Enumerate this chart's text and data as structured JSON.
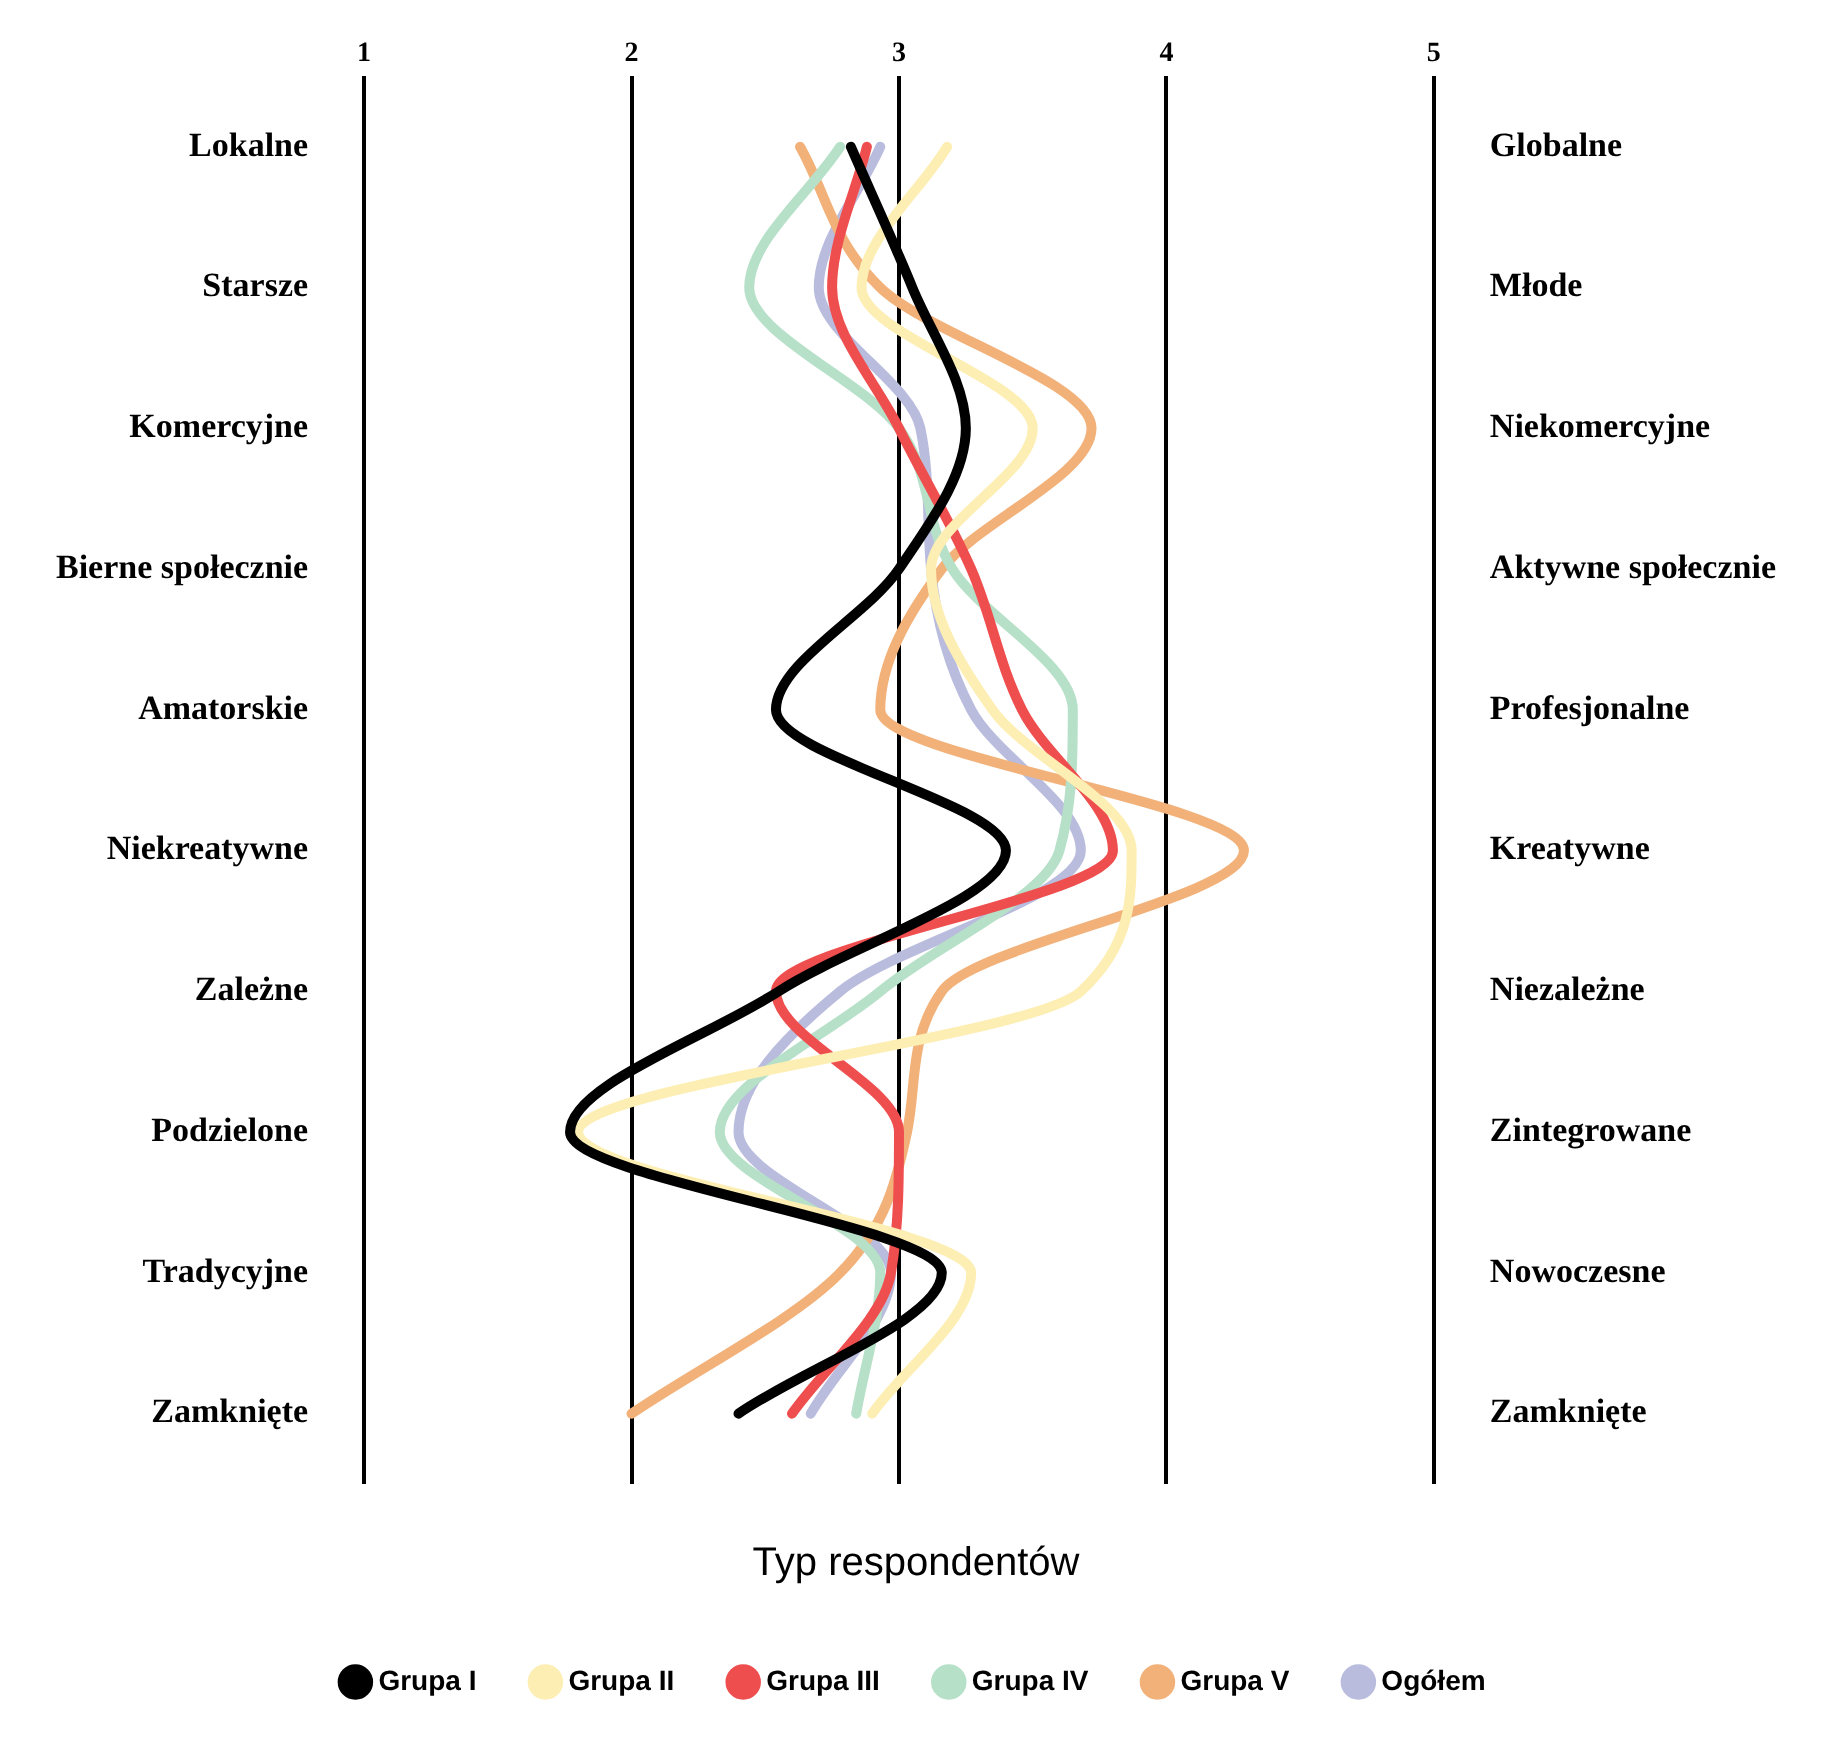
{
  "chart_data": {
    "type": "line",
    "orientation": "horizontal",
    "legend_title": "Typ respondentów",
    "categories": [
      "Lokalne",
      "Starsze",
      "Komercyjne",
      "Bierne społecznie",
      "Amatorskie",
      "Niekreatywne",
      "Zależne",
      "Podzielone",
      "Tradycyjne",
      "Zamknięte"
    ],
    "y2_categories": [
      "Globalne",
      "Młode",
      "Niekomercyjne",
      "Aktywne społecznie",
      "Profesjonalne",
      "Kreatywne",
      "Niezależne",
      "Zintegrowane",
      "Nowoczesne",
      "Zamknięte"
    ],
    "xlim": [
      1,
      5
    ],
    "xticks": [
      1,
      2,
      3,
      4,
      5
    ],
    "grid": "x",
    "legend": "bottom",
    "marker": "none",
    "line_style": "solid",
    "series": [
      {
        "name": "Grupa I",
        "color": "#000000",
        "values": [
          2.82,
          3.05,
          3.25,
          3.0,
          2.54,
          3.4,
          2.55,
          1.77,
          3.16,
          2.4
        ]
      },
      {
        "name": "Grupa II",
        "color": "#fdeeb4",
        "values": [
          3.18,
          2.86,
          3.5,
          3.12,
          3.35,
          3.87,
          3.68,
          1.8,
          3.27,
          2.9
        ]
      },
      {
        "name": "Grupa III",
        "color": "#ef4e4e",
        "values": [
          2.88,
          2.75,
          3.0,
          3.27,
          3.46,
          3.8,
          2.54,
          3.0,
          2.97,
          2.6
        ]
      },
      {
        "name": "Grupa IV",
        "color": "#b6e0c8",
        "values": [
          2.78,
          2.44,
          3.0,
          3.2,
          3.65,
          3.6,
          2.93,
          2.33,
          2.93,
          2.84
        ]
      },
      {
        "name": "Grupa V",
        "color": "#f2b179",
        "values": [
          2.63,
          2.93,
          3.72,
          3.16,
          2.93,
          4.29,
          3.16,
          3.03,
          2.78,
          2.0
        ]
      },
      {
        "name": "Ogółem",
        "color": "#b9bcdd",
        "values": [
          2.93,
          2.7,
          3.08,
          3.12,
          3.27,
          3.68,
          2.78,
          2.4,
          2.97,
          2.67
        ]
      }
    ]
  }
}
